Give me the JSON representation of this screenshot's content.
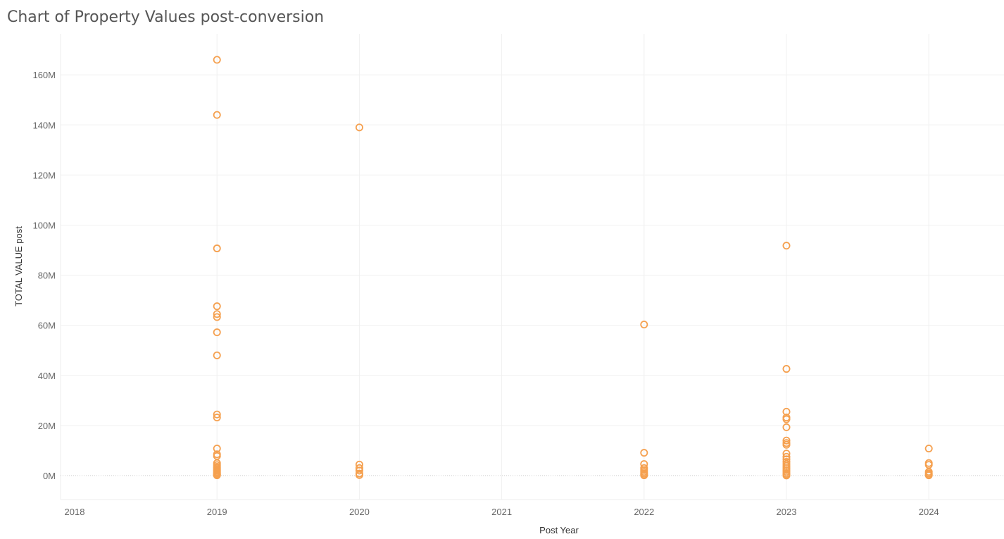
{
  "title": "Chart of Property Values post-conversion",
  "chart_data": {
    "type": "scatter",
    "title": "Chart of Property Values post-conversion",
    "xlabel": "Post Year",
    "ylabel": "TOTAL VALUE post",
    "x_ticks": [
      "2018",
      "2019",
      "2020",
      "2021",
      "2022",
      "2023",
      "2024"
    ],
    "y_ticks": [
      "0M",
      "20M",
      "40M",
      "60M",
      "80M",
      "100M",
      "120M",
      "140M",
      "160M"
    ],
    "xlim": [
      2017.9,
      2024.6
    ],
    "ylim": [
      -10,
      175
    ],
    "marker_color": "#f5a04f",
    "grid": true,
    "series": [
      {
        "x": [
          2019,
          2019,
          2019,
          2019,
          2019,
          2019,
          2019,
          2019,
          2019,
          2019,
          2019,
          2019,
          2019,
          2019,
          2019,
          2019,
          2019,
          2019,
          2019,
          2019,
          2019,
          2019,
          2019,
          2019,
          2020,
          2020,
          2020,
          2020,
          2020,
          2020,
          2022,
          2022,
          2022,
          2022,
          2022,
          2022,
          2022,
          2022,
          2022,
          2023,
          2023,
          2023,
          2023,
          2023,
          2023,
          2023,
          2023,
          2023,
          2023,
          2023,
          2023,
          2023,
          2023,
          2023,
          2023,
          2023,
          2023,
          2023,
          2023,
          2023,
          2024,
          2024,
          2024,
          2024,
          2024,
          2024,
          2024
        ],
        "y": [
          166,
          144,
          90.7,
          67.6,
          64.5,
          63.3,
          57.2,
          48,
          24.4,
          23.2,
          10.8,
          8.5,
          7.8,
          5,
          4.2,
          3.5,
          3,
          2.5,
          2,
          1.5,
          1,
          0.6,
          0.3,
          0.1,
          139,
          4.4,
          3,
          2,
          0.8,
          0.2,
          60.3,
          9.1,
          4.6,
          3,
          2.2,
          1.5,
          0.9,
          0.4,
          0.1,
          91.8,
          42.6,
          25.5,
          23.2,
          22.5,
          19.3,
          14,
          13,
          12.3,
          8.8,
          7.5,
          6.5,
          5.5,
          4.6,
          3.8,
          3,
          2.2,
          1.5,
          0.8,
          0.3,
          0.05,
          10.8,
          5,
          4.3,
          1.5,
          0.9,
          0.4,
          0.1
        ]
      }
    ]
  }
}
